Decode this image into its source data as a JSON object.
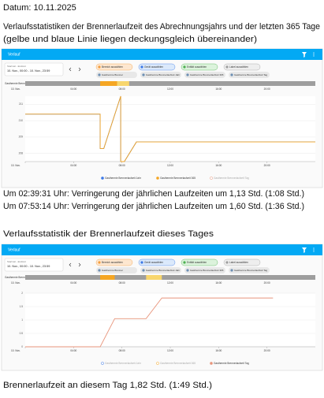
{
  "date": "Datum: 10.11.2025",
  "heading1": "Verlaufsstatistiken der Brennerlaufzeit des Abrechnungsjahrs und der letzten 365 Tage",
  "note1": "(gelbe und blaue Linie liegen deckungsgleich übereinander)",
  "screenshot1": {
    "app_title": "Verlauf",
    "range_label": "Startzeit - Endzeit",
    "range": "10. Nov., 00:00 - 10. Nov., 23:59",
    "filters": [
      "Bereich auswählen",
      "Gerät auswählen",
      "Entität auswählen",
      "Label auswählen"
    ],
    "entities": [
      "Gasthermie Brenner",
      "Gasthermie Brennerlaufzeit Jahr",
      "Gasthermie Brennerlaufzeit 365",
      "Gasthermie Brennerlaufzeit Tag"
    ],
    "timeline_label": "Gasthermie Brenner",
    "chart": {
      "type": "line",
      "xlim": [
        0,
        24
      ],
      "xticks": [
        {
          "value": 0,
          "label": "10. Nov."
        },
        {
          "value": 4,
          "label": "04:00"
        },
        {
          "value": 8,
          "label": "08:00"
        },
        {
          "value": 12,
          "label": "12:00"
        },
        {
          "value": 16,
          "label": "16:00"
        },
        {
          "value": 20,
          "label": "20:00"
        }
      ],
      "ylim": [
        207.5,
        211.5
      ],
      "yticks": [
        208,
        209,
        210,
        211
      ],
      "x": [
        0,
        6.2,
        6.2,
        6.5,
        7.9,
        7.9,
        8.2,
        9.2,
        24
      ],
      "series": [
        {
          "name": "Gasthermie Brennerlaufzeit Jahr",
          "color": "#3b78e7",
          "visible": true,
          "values": [
            210.4,
            210.4,
            208.3,
            208.3,
            211.5,
            207.5,
            207.5,
            208.7,
            208.7
          ]
        },
        {
          "name": "Gasthermie Brennerlaufzeit 365",
          "color": "#f5a623",
          "visible": true,
          "values": [
            210.4,
            210.4,
            208.3,
            208.3,
            211.5,
            207.5,
            207.5,
            208.7,
            208.7
          ]
        },
        {
          "name": "Gasthermie Brennerlaufzeit Tag",
          "color": "#e8957c",
          "visible": false
        }
      ]
    }
  },
  "findings": [
    "Um 02:39:31 Uhr: Verringerung der jährlichen Laufzeiten um 1,13 Std. (1:08 Std.)",
    "Um 07:53:14 Uhr: Verringerung der jährlichen Laufzeiten um 1,60 Std. (1:36 Std.)"
  ],
  "heading2": "Verlaufsstatistik der Brennerlaufzeit dieses Tages",
  "screenshot2": {
    "app_title": "Verlauf",
    "range_label": "Startzeit - Endzeit",
    "range": "10. Nov., 00:00 - 10. Nov., 23:59",
    "filters": [
      "Bereich auswählen",
      "Gerät auswählen",
      "Entität auswählen",
      "Label auswählen"
    ],
    "entities": [
      "Gasthermie Brenner",
      "Gasthermie Brennerlaufzeit Jahr",
      "Gasthermie Brennerlaufzeit 365",
      "Gasthermie Brennerlaufzeit Tag"
    ],
    "timeline_label": "Gasthermie Brenner",
    "chart": {
      "type": "line",
      "xlim": [
        0,
        24
      ],
      "xticks": [
        {
          "value": 0,
          "label": "10. Nov."
        },
        {
          "value": 4,
          "label": "04:00"
        },
        {
          "value": 8,
          "label": "08:00"
        },
        {
          "value": 12,
          "label": "12:00"
        },
        {
          "value": 16,
          "label": "16:00"
        },
        {
          "value": 20,
          "label": "20:00"
        }
      ],
      "ylim": [
        0,
        2
      ],
      "yticks": [
        0,
        0.5,
        1,
        1.5,
        2
      ],
      "x": [
        0,
        6.2,
        7.4,
        10,
        11.3,
        20.5
      ],
      "series": [
        {
          "name": "Gasthermie Brennerlaufzeit Jahr",
          "color": "#3b78e7",
          "visible": false
        },
        {
          "name": "Gasthermie Brennerlaufzeit 365",
          "color": "#f5a623",
          "visible": false
        },
        {
          "name": "Gasthermie Brennerlaufzeit Tag",
          "color": "#e8957c",
          "visible": true,
          "values": [
            0,
            0,
            1.05,
            1.05,
            1.82,
            1.82
          ]
        }
      ]
    }
  },
  "summary": "Brennerlaufzeit an diesem Tag 1,82 Std. (1:49 Std.)"
}
